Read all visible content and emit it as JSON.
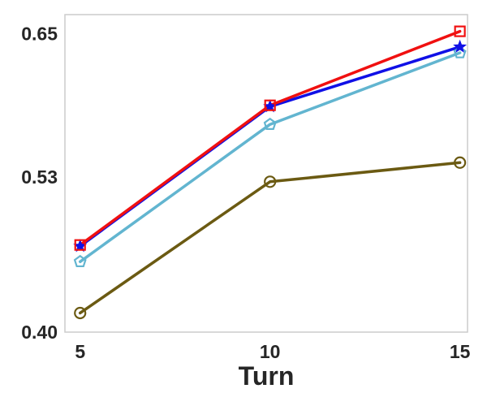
{
  "chart_data": {
    "type": "line",
    "title": "",
    "xlabel": "Turn",
    "ylabel": "",
    "x": [
      5,
      10,
      15
    ],
    "xticks": [
      "5",
      "10",
      "15"
    ],
    "yticks": [
      "0.40",
      "0.53",
      "0.65"
    ],
    "ytick_values": [
      0.4,
      0.53,
      0.65
    ],
    "xlim": [
      4.6,
      15.2
    ],
    "ylim": [
      0.4,
      0.666
    ],
    "grid": false,
    "legend": "none",
    "series": [
      {
        "color": "#6b5a12",
        "marker": "circle",
        "values": [
          0.416,
          0.526,
          0.542
        ]
      },
      {
        "color": "#62b5d0",
        "marker": "pentagon",
        "values": [
          0.459,
          0.574,
          0.634
        ]
      },
      {
        "color": "#1010e6",
        "marker": "star",
        "values": [
          0.472,
          0.589,
          0.639
        ]
      },
      {
        "color": "#f01010",
        "marker": "square",
        "values": [
          0.473,
          0.59,
          0.652
        ]
      }
    ]
  }
}
